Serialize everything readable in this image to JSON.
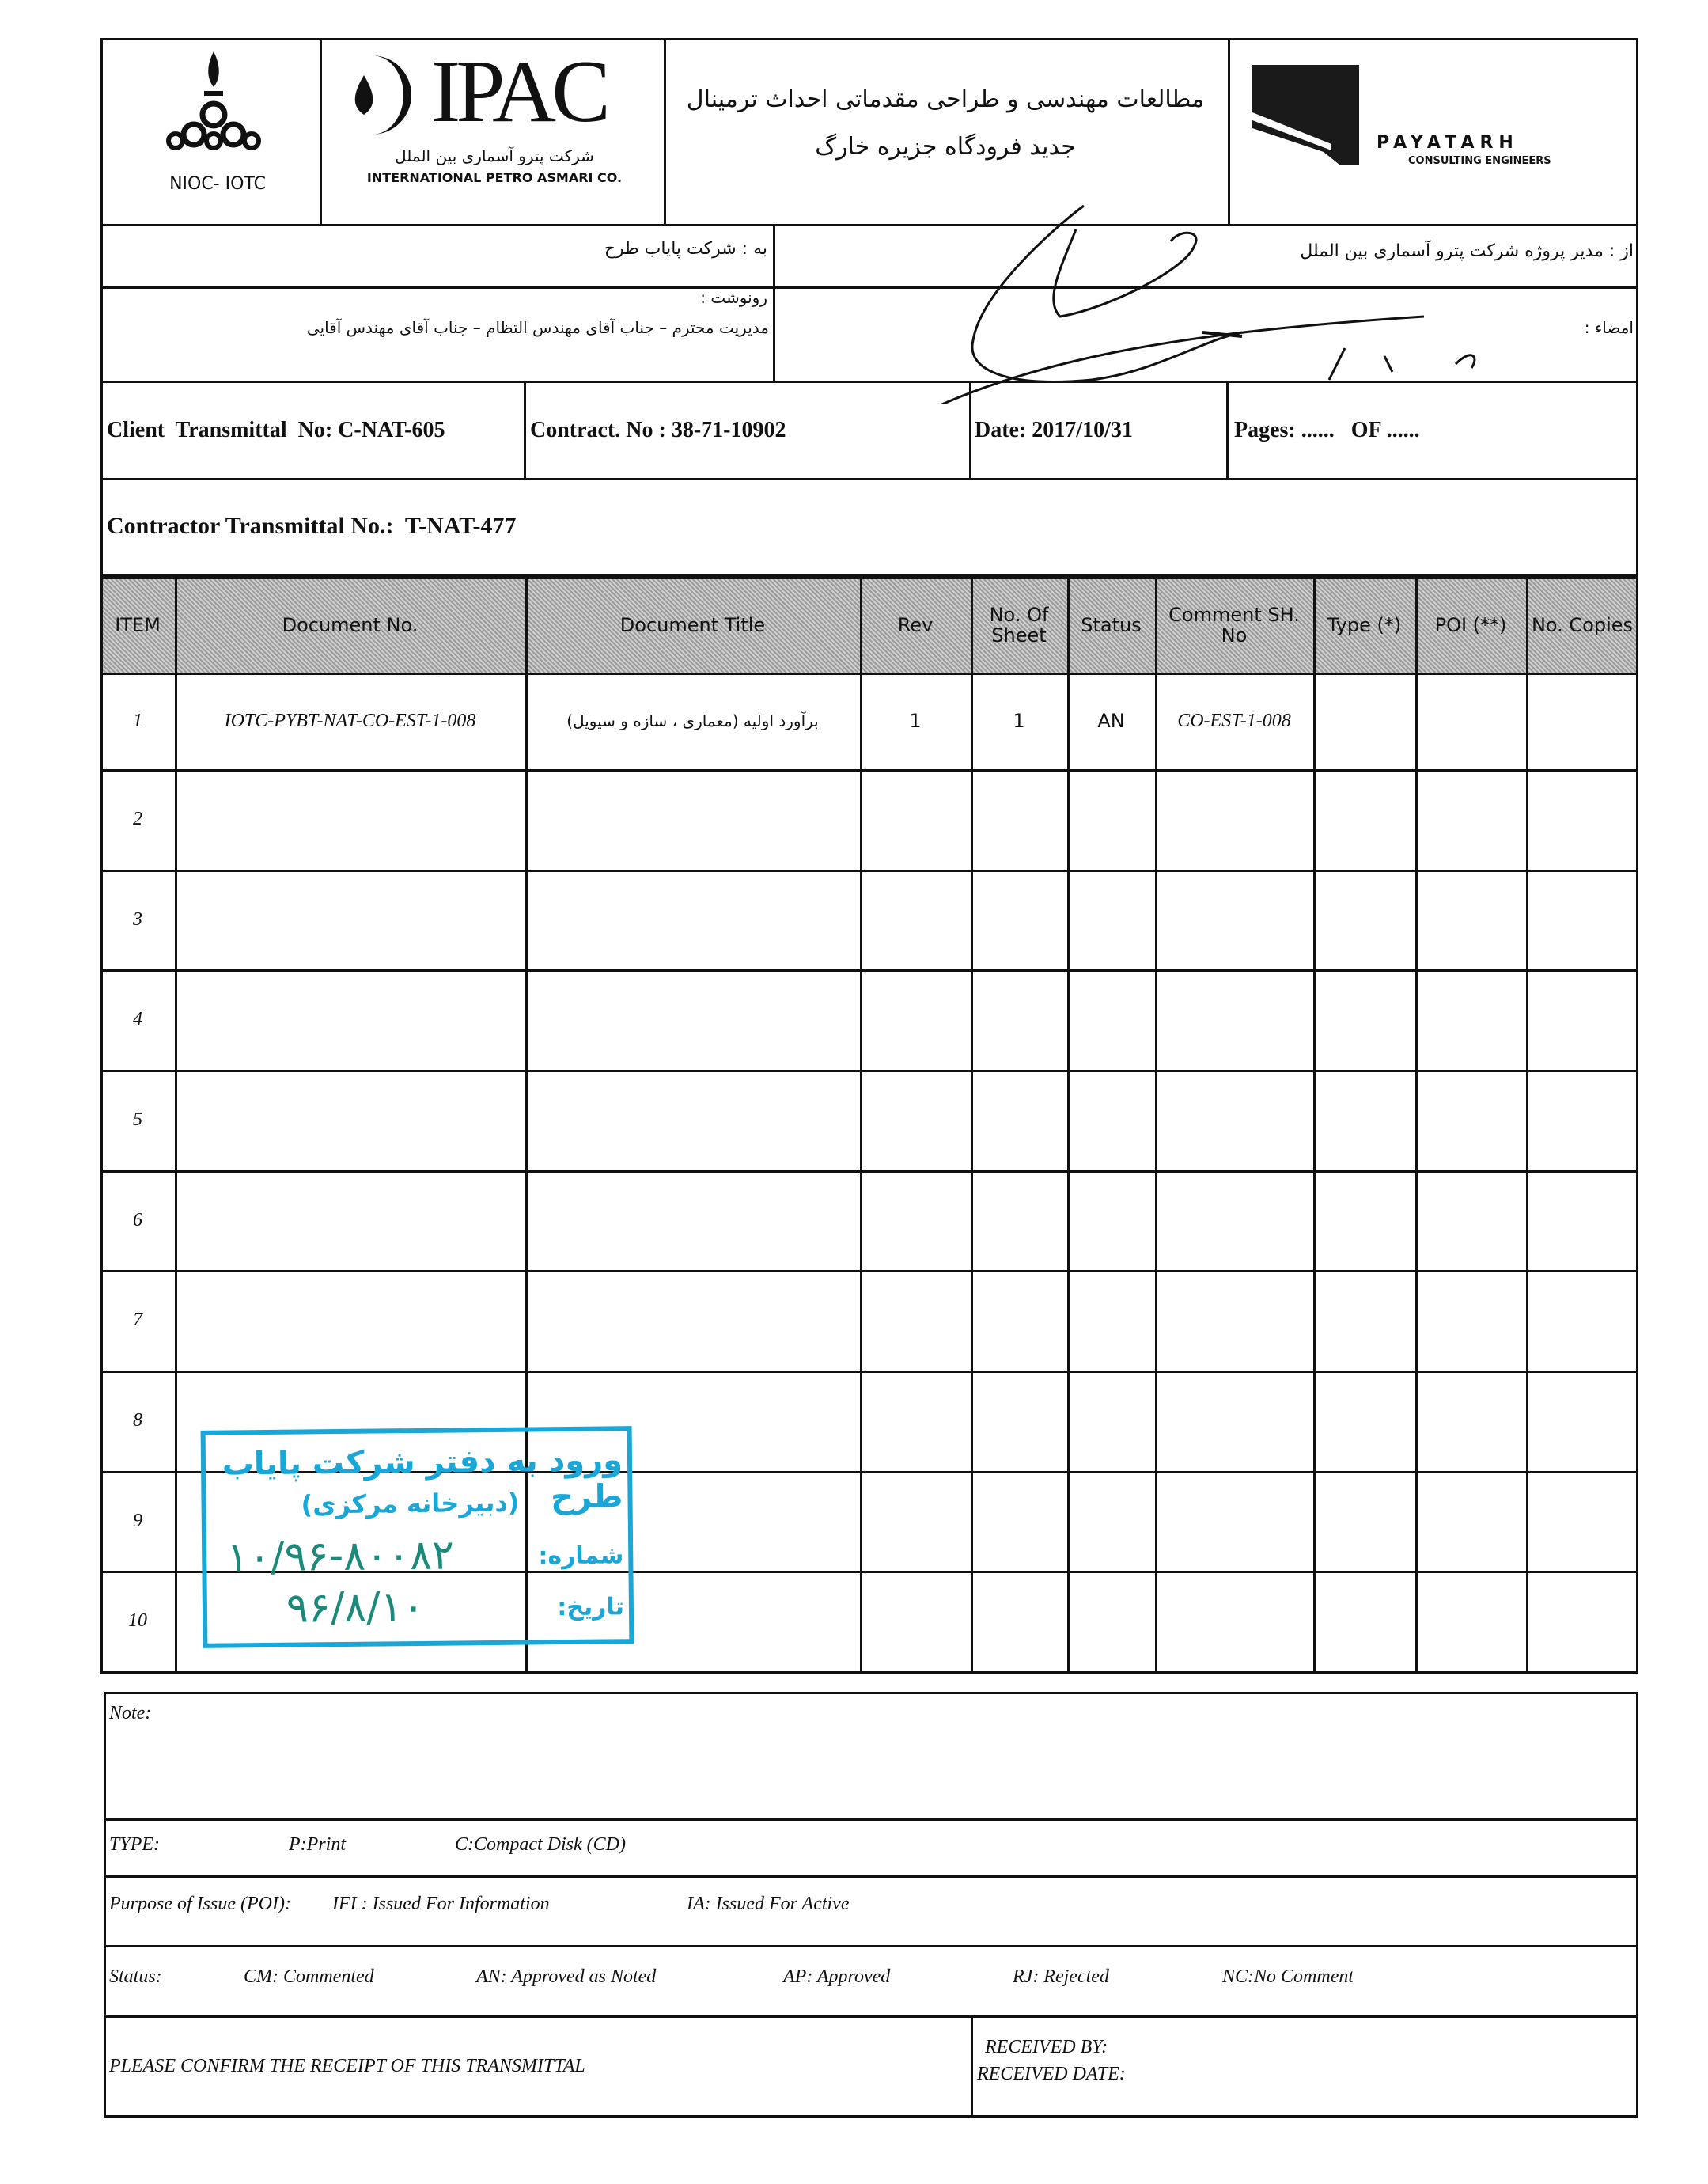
{
  "header": {
    "nioc_label": "NIOC- IOTC",
    "ipac_logo_text": "IPAC",
    "ipac_fa": "شرکت پترو آسماری بین الملل",
    "ipac_en": "INTERNATIONAL PETRO ASMARI CO.",
    "project_title_line1": "مطالعات مهندسی و طراحی مقدماتی احداث ترمینال",
    "project_title_line2": "جدید فرودگاه جزیره خارگ",
    "payatarh_name": "PAYATARH",
    "payatarh_sub": "CONSULTING ENGINEERS"
  },
  "addressing": {
    "to": "به : شرکت پایاب طرح",
    "from": "از : مدیر پروژه شرکت پترو آسماری بین الملل",
    "cc_label": "رونوشت :",
    "cc_value": "مدیریت محترم – جناب آقای مهندس التظام – جناب آقای مهندس آقایی",
    "signature_label": "امضاء :"
  },
  "transmittal": {
    "client_no": "Client  Transmittal  No: C-NAT-605",
    "contract_no": "Contract. No : 38-71-10902",
    "date": "Date: 2017/10/31",
    "pages": "Pages: ......   OF ......",
    "contractor_no": "Contractor Transmittal No.:  T-NAT-477"
  },
  "table": {
    "headers": [
      "ITEM",
      "Document No.",
      "Document Title",
      "Rev",
      "No. Of Sheet",
      "Status",
      "Comment SH. No",
      "Type (*)",
      "POI   (**)",
      "No. Copies"
    ],
    "rows": [
      {
        "item": "1",
        "doc_no": "IOTC-PYBT-NAT-CO-EST-1-008",
        "title": "برآورد اولیه (معماری ، سازه و سیویل)",
        "rev": "1",
        "sheets": "1",
        "status": "AN",
        "comment_sh": "CO-EST-1-008",
        "type": "",
        "poi": "",
        "copies": ""
      },
      {
        "item": "2"
      },
      {
        "item": "3"
      },
      {
        "item": "4"
      },
      {
        "item": "5"
      },
      {
        "item": "6"
      },
      {
        "item": "7"
      },
      {
        "item": "8"
      },
      {
        "item": "9"
      },
      {
        "item": "10"
      }
    ]
  },
  "stamp": {
    "line1": "ورود به دفتر شرکت پایاب طرح",
    "line2": "(دبیرخانه مرکزی)",
    "number_label": "شماره:",
    "number": "۱۰/۹۶-۸۰۰۸۲",
    "date_label": "تاریخ:",
    "date": "۹۶/۸/۱۰",
    "color": "#1aa6d6"
  },
  "legend": {
    "note_label": "Note:",
    "type_label": "TYPE:",
    "type_p": "P:Print",
    "type_c": "C:Compact Disk (CD)",
    "poi_label": "Purpose of Issue (POI):",
    "poi_ifi": "IFI : Issued For Information",
    "poi_ia": "IA: Issued For Active",
    "status_label": "Status:",
    "status_cm": "CM: Commented",
    "status_an": "AN: Approved as Noted",
    "status_ap": "AP: Approved",
    "status_rj": "RJ: Rejected",
    "status_nc": "NC:No Comment",
    "confirm": "PLEASE CONFIRM THE RECEIPT OF THIS TRANSMITTAL",
    "received_by": "RECEIVED BY:",
    "received_date": "RECEIVED DATE:"
  }
}
